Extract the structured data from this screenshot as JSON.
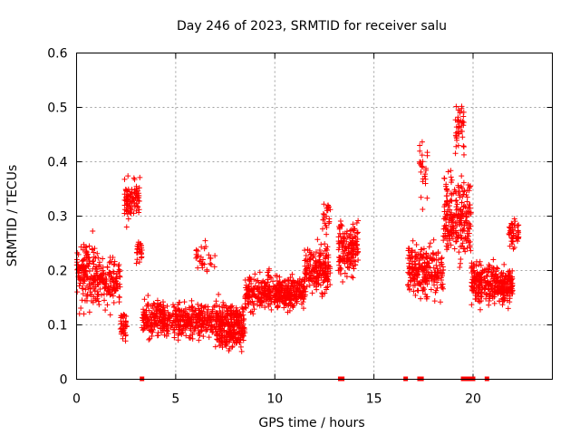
{
  "chart_data": {
    "type": "scatter",
    "title": "Day 246 of 2023, SRMTID for receiver salu",
    "xlabel": "GPS time / hours",
    "ylabel": "SRMTID / TECUs",
    "xlim": [
      0,
      24
    ],
    "ylim": [
      0,
      0.6
    ],
    "x_ticks": [
      0,
      5,
      10,
      15,
      20
    ],
    "y_ticks": [
      0,
      0.1,
      0.2,
      0.3,
      0.4,
      0.5,
      0.6
    ],
    "x_tick_labels": [
      "0",
      "5",
      "10",
      "15",
      "20"
    ],
    "y_tick_labels": [
      "0",
      "0.1",
      "0.2",
      "0.3",
      "0.4",
      "0.5",
      "0.6"
    ],
    "grid": true,
    "marker": "+",
    "color": "#ff0000",
    "gap_markers_x": [
      3.3,
      13.3,
      13.4,
      16.6,
      17.3,
      17.4,
      19.5,
      19.6,
      19.8,
      20.0,
      20.7
    ],
    "series": [
      {
        "name": "SRMTID",
        "segments": [
          {
            "x0": 0.0,
            "x1": 1.2,
            "mean": 0.19,
            "spread": 0.09,
            "n": 170
          },
          {
            "x0": 1.2,
            "x1": 2.2,
            "mean": 0.18,
            "spread": 0.07,
            "n": 110
          },
          {
            "x0": 2.2,
            "x1": 2.55,
            "mean": 0.1,
            "spread": 0.05,
            "n": 40
          },
          {
            "x0": 2.4,
            "x1": 3.2,
            "mean": 0.33,
            "spread": 0.06,
            "n": 90
          },
          {
            "x0": 3.0,
            "x1": 3.3,
            "mean": 0.24,
            "spread": 0.04,
            "n": 25
          },
          {
            "x0": 3.3,
            "x1": 8.5,
            "mean": 0.11,
            "spread": 0.05,
            "n": 620
          },
          {
            "x0": 6.0,
            "x1": 7.0,
            "mean": 0.22,
            "spread": 0.05,
            "n": 30
          },
          {
            "x0": 7.0,
            "x1": 8.5,
            "mean": 0.08,
            "spread": 0.04,
            "n": 130
          },
          {
            "x0": 8.5,
            "x1": 11.5,
            "mean": 0.16,
            "spread": 0.05,
            "n": 420
          },
          {
            "x0": 11.5,
            "x1": 12.8,
            "mean": 0.2,
            "spread": 0.07,
            "n": 190
          },
          {
            "x0": 12.4,
            "x1": 12.8,
            "mean": 0.3,
            "spread": 0.05,
            "n": 25
          },
          {
            "x0": 13.2,
            "x1": 14.2,
            "mean": 0.24,
            "spread": 0.08,
            "n": 160
          },
          {
            "x0": 16.7,
            "x1": 18.5,
            "mean": 0.2,
            "spread": 0.08,
            "n": 240
          },
          {
            "x0": 17.3,
            "x1": 17.7,
            "mean": 0.38,
            "spread": 0.09,
            "n": 25
          },
          {
            "x0": 18.5,
            "x1": 19.9,
            "mean": 0.3,
            "spread": 0.12,
            "n": 230
          },
          {
            "x0": 19.1,
            "x1": 19.6,
            "mean": 0.46,
            "spread": 0.07,
            "n": 40
          },
          {
            "x0": 19.9,
            "x1": 21.2,
            "mean": 0.18,
            "spread": 0.06,
            "n": 190
          },
          {
            "x0": 21.2,
            "x1": 22.0,
            "mean": 0.17,
            "spread": 0.05,
            "n": 150
          },
          {
            "x0": 21.8,
            "x1": 22.3,
            "mean": 0.27,
            "spread": 0.05,
            "n": 50
          }
        ]
      }
    ]
  }
}
